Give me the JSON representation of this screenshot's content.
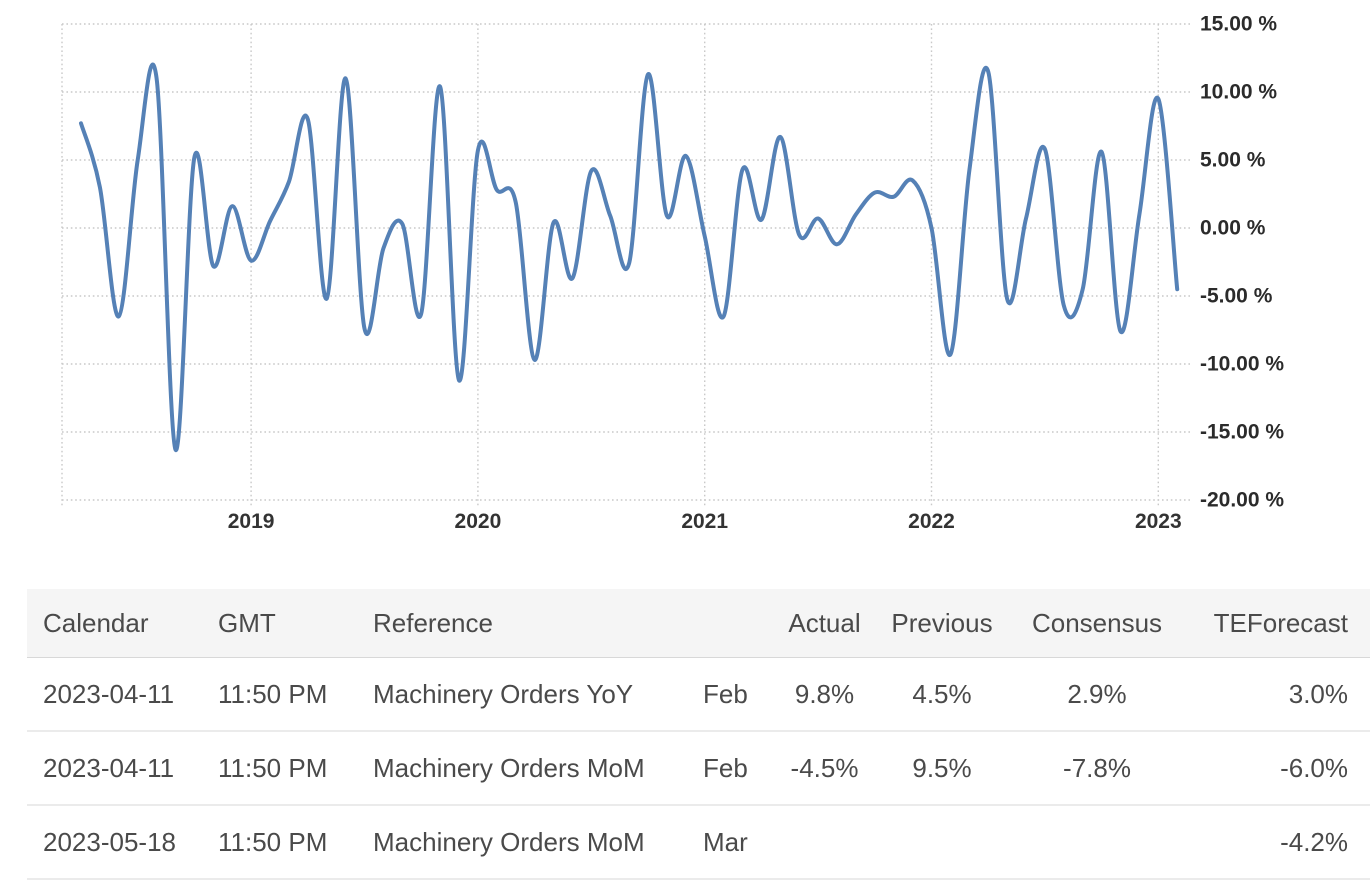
{
  "chart_data": {
    "type": "line",
    "title": "",
    "xlabel": "",
    "ylabel": "",
    "legend": "none",
    "grid": "dotted",
    "grid_color": "#c9c9c9",
    "axis_label_color": "#2b2b2b",
    "ylim": [
      -20,
      15
    ],
    "x": [
      "2018-04",
      "2018-05",
      "2018-06",
      "2018-07",
      "2018-08",
      "2018-09",
      "2018-10",
      "2018-11",
      "2018-12",
      "2019-01",
      "2019-02",
      "2019-03",
      "2019-04",
      "2019-05",
      "2019-06",
      "2019-07",
      "2019-08",
      "2019-09",
      "2019-10",
      "2019-11",
      "2019-12",
      "2020-01",
      "2020-02",
      "2020-03",
      "2020-04",
      "2020-05",
      "2020-06",
      "2020-07",
      "2020-08",
      "2020-09",
      "2020-10",
      "2020-11",
      "2020-12",
      "2021-01",
      "2021-02",
      "2021-03",
      "2021-04",
      "2021-05",
      "2021-06",
      "2021-07",
      "2021-08",
      "2021-09",
      "2021-10",
      "2021-11",
      "2021-12",
      "2022-01",
      "2022-02",
      "2022-03",
      "2022-04",
      "2022-05",
      "2022-06",
      "2022-07",
      "2022-08",
      "2022-09",
      "2022-10",
      "2022-11",
      "2022-12",
      "2023-01",
      "2023-02"
    ],
    "series": [
      {
        "name": "Machinery Orders",
        "color": "#5581b6",
        "values": [
          7.7,
          3.0,
          -6.5,
          5.0,
          11.0,
          -16.3,
          5.2,
          -2.8,
          1.6,
          -2.4,
          0.5,
          3.4,
          8.0,
          -5.2,
          11.0,
          -7.4,
          -1.5,
          0.3,
          -6.3,
          10.4,
          -11.2,
          5.7,
          2.8,
          1.9,
          -9.7,
          0.4,
          -3.7,
          4.2,
          0.9,
          -2.6,
          11.3,
          0.9,
          5.3,
          -0.6,
          -6.5,
          4.3,
          0.6,
          6.7,
          -0.5,
          0.7,
          -1.2,
          1.0,
          2.6,
          2.3,
          3.5,
          0.0,
          -9.3,
          4.2,
          11.5,
          -5.2,
          0.7,
          5.8,
          -5.7,
          -4.5,
          5.6,
          -7.6,
          1.0,
          9.5,
          -4.5
        ]
      }
    ],
    "y_ticks": [
      {
        "value": 15,
        "label": "15.00 %"
      },
      {
        "value": 10,
        "label": "10.00 %"
      },
      {
        "value": 5,
        "label": "5.00 %"
      },
      {
        "value": 0,
        "label": "0.00 %"
      },
      {
        "value": -5,
        "label": "-5.00 %"
      },
      {
        "value": -10,
        "label": "-10.00 %"
      },
      {
        "value": -15,
        "label": "-15.00 %"
      },
      {
        "value": -20,
        "label": "-20.00 %"
      }
    ],
    "x_ticks": [
      {
        "label": "2019",
        "index": 9
      },
      {
        "label": "2020",
        "index": 21
      },
      {
        "label": "2021",
        "index": 33
      },
      {
        "label": "2022",
        "index": 45
      },
      {
        "label": "2023",
        "index": 57
      }
    ]
  },
  "table": {
    "header_bg": "#f5f5f5",
    "text_color": "#4a4a4a",
    "headers": [
      "Calendar",
      "GMT",
      "Reference",
      "",
      "Actual",
      "Previous",
      "Consensus",
      "TEForecast"
    ],
    "rows": [
      {
        "calendar": "2023-04-11",
        "gmt": "11:50 PM",
        "reference": "Machinery Orders YoY",
        "period": "Feb",
        "actual": "9.8%",
        "previous": "4.5%",
        "consensus": "2.9%",
        "teforecast": "3.0%"
      },
      {
        "calendar": "2023-04-11",
        "gmt": "11:50 PM",
        "reference": "Machinery Orders MoM",
        "period": "Feb",
        "actual": "-4.5%",
        "previous": "9.5%",
        "consensus": "-7.8%",
        "teforecast": "-6.0%"
      },
      {
        "calendar": "2023-05-18",
        "gmt": "11:50 PM",
        "reference": "Machinery Orders MoM",
        "period": "Mar",
        "actual": "",
        "previous": "",
        "consensus": "",
        "teforecast": "-4.2%"
      }
    ]
  }
}
